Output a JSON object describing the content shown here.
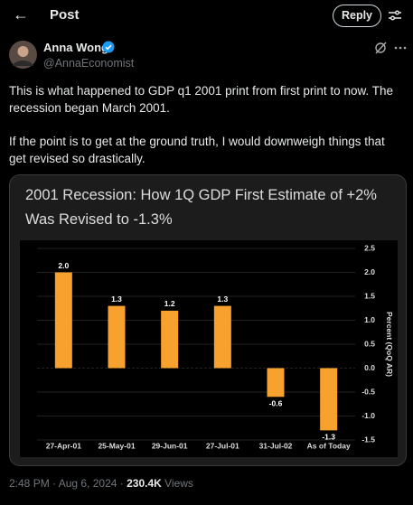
{
  "header": {
    "back": "←",
    "title": "Post",
    "reply": "Reply"
  },
  "author": {
    "name": "Anna Wong",
    "handle": "@AnnaEconomist"
  },
  "body": [
    "This is what happened to GDP q1 2001 print from first print to now. The recession began March 2001.",
    "If the point is to get at the ground truth, I would downweigh things that get revised so drastically."
  ],
  "chart_data": {
    "type": "bar",
    "title": "2001 Recession: How 1Q GDP First Estimate of +2% Was Revised to -1.3%",
    "y_label": "Percent (QoQ AR)",
    "categories": [
      "27-Apr-01",
      "25-May-01",
      "29-Jun-01",
      "27-Jul-01",
      "31-Jul-02",
      "As of Today"
    ],
    "values": [
      2.0,
      1.3,
      1.2,
      1.3,
      -0.6,
      -1.3
    ],
    "value_labels": [
      "2.0",
      "1.3",
      "1.2",
      "1.3",
      "-0.6",
      "-1.3"
    ],
    "color": "#f7a12e",
    "ylim": [
      -1.5,
      2.5
    ],
    "yticks": [
      2.5,
      {
        "value": 2,
        "label": "2.0"
      },
      1.5,
      {
        "value": 1,
        "label": "1.0"
      },
      0.5,
      {
        "value": 0,
        "label": "0.0"
      },
      -0.5,
      {
        "value": -1,
        "label": "-1.0"
      },
      -1.5
    ],
    "grid": true
  },
  "footer": {
    "timestamp": "2:48 PM · Aug 6, 2024 ·",
    "views": "230.4K",
    "views_label": "Views"
  }
}
